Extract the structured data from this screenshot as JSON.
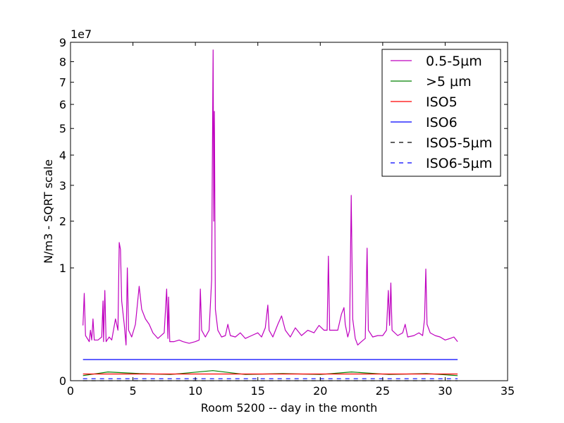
{
  "chart_data": {
    "type": "line",
    "xlabel": "Room 5200 -- day in the month",
    "ylabel": "N/m3 - SQRT scale",
    "y_scale": "sqrt",
    "y_multiplier_label": "1e7",
    "xlim": [
      0,
      35
    ],
    "ylim": [
      0,
      9
    ],
    "x_ticks": [
      0,
      5,
      10,
      15,
      20,
      25,
      30,
      35
    ],
    "x_tick_labels": [
      "0",
      "5",
      "10",
      "15",
      "20",
      "25",
      "30",
      "35"
    ],
    "y_ticks": [
      0,
      1,
      2,
      3,
      4,
      5,
      6,
      7,
      8,
      9
    ],
    "y_tick_labels": [
      "0",
      "1",
      "2",
      "3",
      "4",
      "5",
      "6",
      "7",
      "8",
      "9"
    ],
    "grid": false,
    "legend_position": "top-right",
    "series": [
      {
        "name": "0.5-5µm",
        "color": "#bf00bf",
        "style": "solid",
        "points": [
          [
            1.0,
            0.24
          ],
          [
            1.1,
            0.6
          ],
          [
            1.2,
            0.16
          ],
          [
            1.5,
            0.12
          ],
          [
            1.6,
            0.2
          ],
          [
            1.7,
            0.13
          ],
          [
            1.8,
            0.3
          ],
          [
            1.9,
            0.13
          ],
          [
            2.2,
            0.13
          ],
          [
            2.5,
            0.15
          ],
          [
            2.6,
            0.5
          ],
          [
            2.65,
            0.12
          ],
          [
            2.75,
            0.64
          ],
          [
            2.85,
            0.12
          ],
          [
            3.1,
            0.15
          ],
          [
            3.3,
            0.13
          ],
          [
            3.6,
            0.3
          ],
          [
            3.8,
            0.2
          ],
          [
            3.9,
            1.5
          ],
          [
            4.0,
            1.35
          ],
          [
            4.1,
            0.5
          ],
          [
            4.3,
            0.25
          ],
          [
            4.45,
            0.1
          ],
          [
            4.55,
            1.0
          ],
          [
            4.65,
            0.2
          ],
          [
            4.9,
            0.15
          ],
          [
            5.2,
            0.25
          ],
          [
            5.5,
            0.7
          ],
          [
            5.7,
            0.4
          ],
          [
            6.0,
            0.3
          ],
          [
            6.3,
            0.25
          ],
          [
            6.6,
            0.18
          ],
          [
            7.0,
            0.14
          ],
          [
            7.5,
            0.18
          ],
          [
            7.7,
            0.66
          ],
          [
            7.8,
            0.14
          ],
          [
            7.85,
            0.55
          ],
          [
            7.95,
            0.12
          ],
          [
            8.3,
            0.12
          ],
          [
            8.7,
            0.13
          ],
          [
            9.0,
            0.12
          ],
          [
            9.5,
            0.11
          ],
          [
            10.0,
            0.12
          ],
          [
            10.3,
            0.13
          ],
          [
            10.4,
            0.66
          ],
          [
            10.5,
            0.2
          ],
          [
            10.8,
            0.15
          ],
          [
            11.1,
            0.2
          ],
          [
            11.3,
            0.8
          ],
          [
            11.35,
            3.5
          ],
          [
            11.42,
            8.6
          ],
          [
            11.47,
            2.0
          ],
          [
            11.52,
            5.7
          ],
          [
            11.6,
            0.4
          ],
          [
            11.8,
            0.2
          ],
          [
            12.1,
            0.15
          ],
          [
            12.4,
            0.16
          ],
          [
            12.6,
            0.25
          ],
          [
            12.8,
            0.16
          ],
          [
            13.2,
            0.15
          ],
          [
            13.6,
            0.18
          ],
          [
            14.0,
            0.14
          ],
          [
            14.5,
            0.16
          ],
          [
            15.0,
            0.18
          ],
          [
            15.3,
            0.15
          ],
          [
            15.6,
            0.22
          ],
          [
            15.8,
            0.45
          ],
          [
            15.9,
            0.2
          ],
          [
            16.2,
            0.15
          ],
          [
            16.6,
            0.25
          ],
          [
            16.9,
            0.33
          ],
          [
            17.2,
            0.2
          ],
          [
            17.6,
            0.15
          ],
          [
            18.0,
            0.22
          ],
          [
            18.5,
            0.16
          ],
          [
            19.0,
            0.2
          ],
          [
            19.5,
            0.18
          ],
          [
            19.9,
            0.24
          ],
          [
            20.3,
            0.2
          ],
          [
            20.55,
            0.2
          ],
          [
            20.65,
            1.22
          ],
          [
            20.75,
            0.2
          ],
          [
            21.0,
            0.2
          ],
          [
            21.4,
            0.2
          ],
          [
            21.7,
            0.35
          ],
          [
            21.9,
            0.42
          ],
          [
            22.0,
            0.25
          ],
          [
            22.2,
            0.15
          ],
          [
            22.35,
            0.2
          ],
          [
            22.48,
            2.7
          ],
          [
            22.6,
            0.3
          ],
          [
            22.8,
            0.14
          ],
          [
            23.0,
            0.1
          ],
          [
            23.3,
            0.12
          ],
          [
            23.6,
            0.14
          ],
          [
            23.75,
            1.38
          ],
          [
            23.85,
            0.2
          ],
          [
            24.2,
            0.15
          ],
          [
            24.6,
            0.16
          ],
          [
            25.0,
            0.16
          ],
          [
            25.3,
            0.2
          ],
          [
            25.45,
            0.64
          ],
          [
            25.55,
            0.24
          ],
          [
            25.65,
            0.75
          ],
          [
            25.75,
            0.2
          ],
          [
            26.2,
            0.16
          ],
          [
            26.6,
            0.18
          ],
          [
            26.8,
            0.25
          ],
          [
            27.0,
            0.15
          ],
          [
            27.5,
            0.16
          ],
          [
            27.9,
            0.18
          ],
          [
            28.2,
            0.16
          ],
          [
            28.35,
            0.3
          ],
          [
            28.45,
            0.98
          ],
          [
            28.55,
            0.25
          ],
          [
            28.8,
            0.18
          ],
          [
            29.2,
            0.16
          ],
          [
            29.6,
            0.15
          ],
          [
            30.0,
            0.13
          ],
          [
            30.4,
            0.14
          ],
          [
            30.7,
            0.15
          ],
          [
            31.0,
            0.12
          ]
        ]
      },
      {
        "name": ">5 µm",
        "color": "#008000",
        "style": "solid",
        "points": [
          [
            1.0,
            0.002
          ],
          [
            3.0,
            0.006
          ],
          [
            5.5,
            0.004
          ],
          [
            8.0,
            0.003
          ],
          [
            11.4,
            0.008
          ],
          [
            14.0,
            0.003
          ],
          [
            17.0,
            0.004
          ],
          [
            20.0,
            0.003
          ],
          [
            22.5,
            0.006
          ],
          [
            25.5,
            0.003
          ],
          [
            28.5,
            0.004
          ],
          [
            31.0,
            0.002
          ]
        ]
      },
      {
        "name": "ISO5",
        "color": "#ff0000",
        "style": "solid",
        "points": [
          [
            1.0,
            0.0035
          ],
          [
            31.0,
            0.0035
          ]
        ]
      },
      {
        "name": "ISO6",
        "color": "#0000ff",
        "style": "solid",
        "points": [
          [
            1.0,
            0.0352
          ],
          [
            31.0,
            0.0352
          ]
        ]
      },
      {
        "name": "ISO5-5µm",
        "color": "#000000",
        "style": "dashed",
        "points": [
          [
            1.0,
            0.0
          ],
          [
            31.0,
            0.0
          ]
        ]
      },
      {
        "name": "ISO6-5µm",
        "color": "#0000ff",
        "style": "dashed",
        "points": [
          [
            1.0,
            0.0003
          ],
          [
            31.0,
            0.0003
          ]
        ]
      }
    ]
  }
}
